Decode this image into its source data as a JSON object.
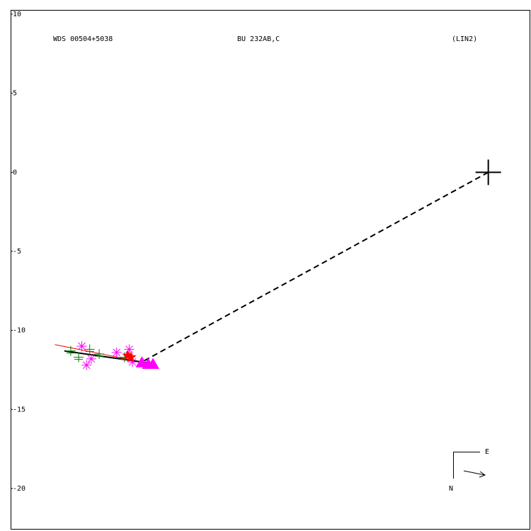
{
  "chart_data": {
    "type": "scatter",
    "title": "WDS 00504+5038",
    "subtitle": "BU  232AB,C",
    "annotation": "(LIN2)",
    "compass": {
      "east": "E",
      "north": "N"
    },
    "xlim": [
      -30.2,
      2.7
    ],
    "ylim": [
      -22.6,
      10.27
    ],
    "yticks": [
      10,
      5,
      0,
      -5,
      -10,
      -15,
      -20
    ],
    "primary": {
      "x": 0,
      "y": 0,
      "color": "#000000"
    },
    "series": [
      {
        "marker": "asterisk",
        "color": "#ff00ff",
        "x": [
          -25.7,
          -25.4,
          -25.1,
          -23.5,
          -22.7,
          -22.5
        ],
        "values": [
          -11.0,
          -12.2,
          -11.8,
          -11.4,
          -11.2,
          -12.0
        ]
      },
      {
        "marker": "plus",
        "color": "#008000",
        "x": [
          -26.4,
          -25.9,
          -25.2,
          -24.6,
          -23.0
        ],
        "values": [
          -11.3,
          -11.7,
          -11.2,
          -11.5,
          -11.7
        ]
      },
      {
        "marker": "star",
        "color": "#ff0000",
        "x": [
          -22.8,
          -22.6
        ],
        "values": [
          -11.6,
          -11.7
        ]
      },
      {
        "marker": "triangle",
        "color": "#ff00ff",
        "x": [
          -21.9,
          -21.5,
          -21.2
        ],
        "values": [
          -12.0,
          -12.1,
          -12.1
        ]
      }
    ],
    "lines": [
      {
        "color": "#ff0000",
        "width": 1,
        "dash": false,
        "x": [
          -27.4,
          -21.9
        ],
        "values": [
          -10.9,
          -12.0
        ]
      },
      {
        "color": "#000000",
        "width": 2,
        "dash": false,
        "x": [
          -26.8,
          -21.2
        ],
        "values": [
          -11.3,
          -12.1
        ]
      },
      {
        "color": "#000000",
        "width": 2,
        "dash": true,
        "x": [
          0,
          -21.9
        ],
        "values": [
          0,
          -12.0
        ]
      }
    ]
  }
}
